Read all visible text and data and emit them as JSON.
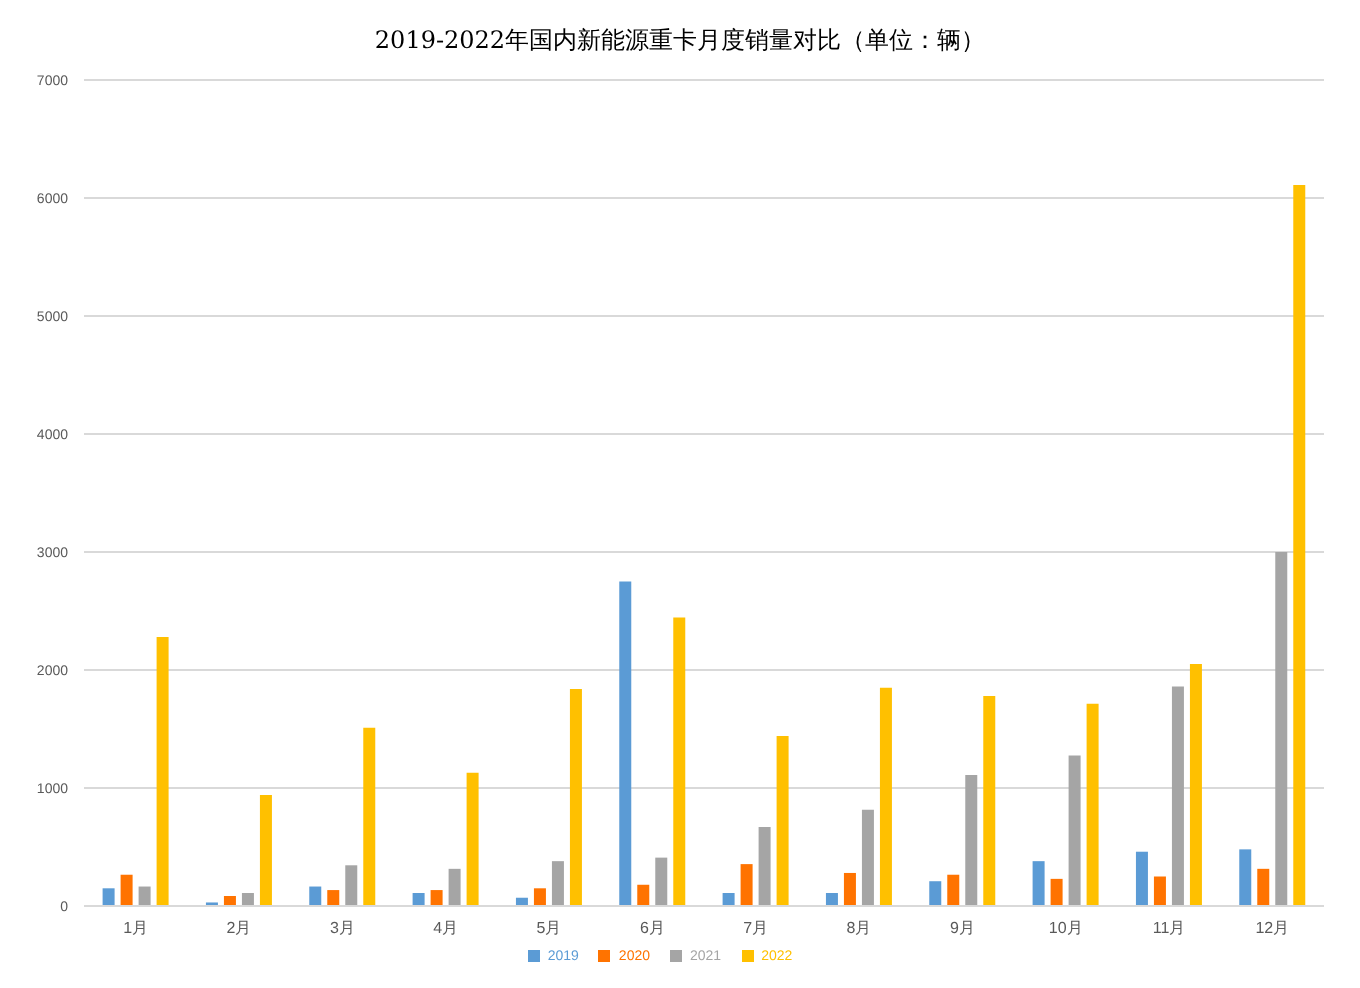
{
  "chart_data": {
    "type": "bar",
    "title": "2019-2022年国内新能源重卡月度销量对比（单位：辆）",
    "categories": [
      "1月",
      "2月",
      "3月",
      "4月",
      "5月",
      "6月",
      "7月",
      "8月",
      "9月",
      "10月",
      "11月",
      "12月"
    ],
    "series": [
      {
        "name": "2019",
        "color": "#5b9bd5",
        "values": [
          150,
          30,
          165,
          110,
          70,
          2750,
          110,
          110,
          210,
          380,
          460,
          480
        ]
      },
      {
        "name": "2020",
        "color": "#ff7300",
        "values": [
          265,
          85,
          135,
          135,
          150,
          180,
          355,
          280,
          265,
          230,
          250,
          315
        ]
      },
      {
        "name": "2021",
        "color": "#a5a5a5",
        "values": [
          165,
          110,
          345,
          315,
          380,
          410,
          670,
          815,
          1110,
          1275,
          1860,
          3000
        ]
      },
      {
        "name": "2022",
        "color": "#ffc000",
        "values": [
          2280,
          940,
          1510,
          1130,
          1840,
          2445,
          1440,
          1850,
          1780,
          1715,
          2050,
          6110
        ]
      }
    ],
    "ylim": [
      0,
      7000
    ],
    "yticks": [
      0,
      1000,
      2000,
      3000,
      4000,
      5000,
      6000,
      7000
    ],
    "grid": "y",
    "legend": "bottom"
  }
}
